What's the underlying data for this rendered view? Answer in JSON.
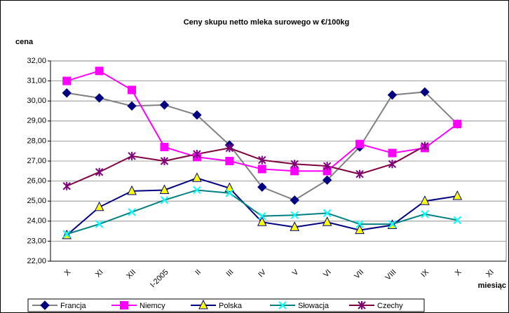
{
  "chart_data": {
    "type": "line",
    "title": "Ceny skupu netto mleka surowego  w €/100kg",
    "y_label": "cena",
    "x_label": "miesiąc",
    "categories": [
      "X",
      "XI",
      "XII",
      "I-2005",
      "II",
      "III",
      "IV",
      "V",
      "VI",
      "VII",
      "VIII",
      "IX",
      "X",
      "XI"
    ],
    "ylim": [
      22,
      32
    ],
    "yticks": [
      {
        "value": 22,
        "label": "22,00"
      },
      {
        "value": 23,
        "label": "23,00"
      },
      {
        "value": 24,
        "label": "24,00"
      },
      {
        "value": 25,
        "label": "25,00"
      },
      {
        "value": 26,
        "label": "26,00"
      },
      {
        "value": 27,
        "label": "27,00"
      },
      {
        "value": 28,
        "label": "28,00"
      },
      {
        "value": 29,
        "label": "29,00"
      },
      {
        "value": 30,
        "label": "30,00"
      },
      {
        "value": 31,
        "label": "31,00"
      },
      {
        "value": 32,
        "label": "32,00"
      }
    ],
    "grid": true,
    "legend": "bottom",
    "series": [
      {
        "name": "Francja",
        "color": "#808080",
        "marker_color": "#000080",
        "marker": "diamond",
        "values": [
          30.4,
          30.15,
          29.75,
          29.8,
          29.3,
          27.8,
          25.7,
          25.05,
          26.05,
          27.7,
          30.3,
          30.45,
          28.85,
          null
        ]
      },
      {
        "name": "Niemcy",
        "color": "#ff00ff",
        "marker_color": "#ff00ff",
        "marker": "square",
        "values": [
          31.0,
          31.5,
          30.55,
          27.7,
          27.2,
          27.0,
          26.6,
          26.5,
          26.5,
          27.85,
          27.4,
          27.65,
          28.85,
          null
        ]
      },
      {
        "name": "Polska",
        "color": "#000080",
        "marker_color": "#ffff00",
        "marker": "triangle",
        "values": [
          23.3,
          24.7,
          25.5,
          25.55,
          26.15,
          25.65,
          23.95,
          23.7,
          23.95,
          23.55,
          23.8,
          25.0,
          25.25,
          null
        ]
      },
      {
        "name": "Słowacja",
        "color": "#008080",
        "marker_color": "#00ffff",
        "marker": "x",
        "values": [
          23.35,
          23.85,
          24.45,
          25.05,
          25.55,
          25.4,
          24.25,
          24.3,
          24.4,
          23.85,
          23.85,
          24.35,
          24.05,
          null
        ]
      },
      {
        "name": "Czechy",
        "color": "#800040",
        "marker_color": "#800080",
        "marker": "star",
        "values": [
          25.75,
          26.45,
          27.25,
          27.0,
          27.35,
          27.65,
          27.05,
          26.85,
          26.75,
          26.35,
          26.85,
          27.75,
          null,
          null
        ]
      }
    ]
  }
}
